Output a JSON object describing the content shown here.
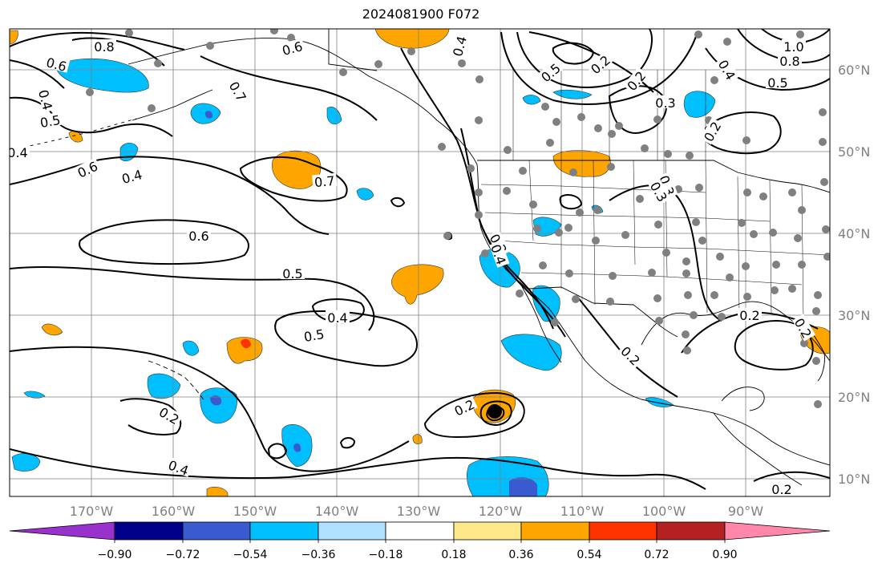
{
  "title": "2024081900 F072",
  "map": {
    "lon_labels": [
      "170°W",
      "160°W",
      "150°W",
      "140°W",
      "130°W",
      "120°W",
      "110°W",
      "100°W",
      "90°W"
    ],
    "lat_labels": [
      "60°N",
      "50°N",
      "40°N",
      "30°N",
      "20°N",
      "10°N"
    ],
    "contour_labels": [
      "0.8",
      "0.6",
      "0.4",
      "0.5",
      "0.7",
      "0.6",
      "0.4",
      "0.7",
      "0.6",
      "0.5",
      "0.4",
      "0.5",
      "0.4",
      "0.2",
      "0.2",
      "0.2",
      "0.4",
      "0.6",
      "0.4",
      "0.2",
      "0.3",
      "0.3",
      "0.3",
      "0.2",
      "0.4",
      "0.5",
      "1.0",
      "0.8",
      "0.2",
      "0.2",
      "0.2",
      "0.5",
      "0.4",
      "0.3",
      "0.2"
    ],
    "land_color": "#ffffff",
    "grid_color": "#808080",
    "station_color": "#808080"
  },
  "colorbar": {
    "ticks": [
      "−0.90",
      "−0.72",
      "−0.54",
      "−0.36",
      "−0.18",
      "0.18",
      "0.36",
      "0.54",
      "0.72",
      "0.90"
    ],
    "colors": [
      "#9932cc",
      "#00008b",
      "#3a5bcf",
      "#00bfff",
      "#b0e0ff",
      "#ffffff",
      "#ffe88a",
      "#ffa500",
      "#ff3300",
      "#b22222",
      "#ff88aa"
    ]
  }
}
